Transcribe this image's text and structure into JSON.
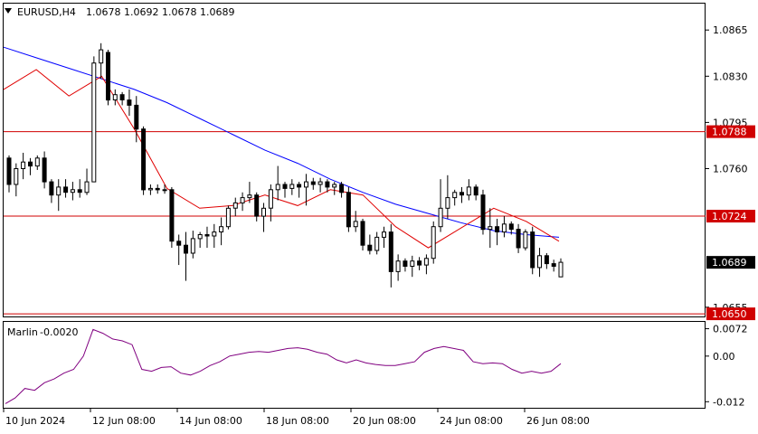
{
  "header": {
    "symbol": "EURUSD,H4",
    "ohlc": "1.0678 1.0692 1.0678 1.0689"
  },
  "colors": {
    "background": "#ffffff",
    "border": "#000000",
    "candle": "#000000",
    "ma_slow": "#0000ff",
    "ma_fast": "#e00000",
    "level_line": "#d00000",
    "indicator": "#800080",
    "price_tag_bg": "#000000",
    "price_tag_text": "#ffffff"
  },
  "chart_data": {
    "type": "line",
    "title": "EURUSD,H4",
    "price_axis": {
      "ticks": [
        "1.0865",
        "1.0830",
        "1.0795",
        "1.0760",
        "1.0655"
      ],
      "range": [
        1.0648,
        1.0885
      ]
    },
    "x_axis": {
      "ticks": [
        "10 Jun 2024",
        "12 Jun 08:00",
        "14 Jun 08:00",
        "18 Jun 08:00",
        "20 Jun 08:00",
        "24 Jun 08:00",
        "26 Jun 08:00"
      ]
    },
    "levels": [
      {
        "label": "1.0788",
        "value": 1.0788
      },
      {
        "label": "1.0724",
        "value": 1.0724
      },
      {
        "label": "1.0650",
        "value": 1.065
      }
    ],
    "current_price": {
      "label": "1.0689",
      "value": 1.0689
    },
    "candles": [
      [
        1.0768,
        1.077,
        1.0742,
        1.0748
      ],
      [
        1.0748,
        1.0764,
        1.0739,
        1.076
      ],
      [
        1.076,
        1.0772,
        1.0752,
        1.0765
      ],
      [
        1.0765,
        1.0768,
        1.0755,
        1.0762
      ],
      [
        1.0762,
        1.077,
        1.0759,
        1.0768
      ],
      [
        1.0768,
        1.0773,
        1.0745,
        1.075
      ],
      [
        1.075,
        1.0752,
        1.0734,
        1.074
      ],
      [
        1.074,
        1.0752,
        1.0728,
        1.0746
      ],
      [
        1.0746,
        1.0752,
        1.0738,
        1.0742
      ],
      [
        1.0742,
        1.075,
        1.0736,
        1.0744
      ],
      [
        1.0744,
        1.0752,
        1.0738,
        1.0742
      ],
      [
        1.0742,
        1.076,
        1.074,
        1.075
      ],
      [
        1.075,
        1.0845,
        1.075,
        1.084
      ],
      [
        1.084,
        1.0855,
        1.0828,
        1.085
      ],
      [
        1.0848,
        1.085,
        1.0808,
        1.0812
      ],
      [
        1.0812,
        1.082,
        1.0808,
        1.0816
      ],
      [
        1.0816,
        1.0818,
        1.0808,
        1.0812
      ],
      [
        1.0812,
        1.082,
        1.08,
        1.0808
      ],
      [
        1.0808,
        1.0815,
        1.078,
        1.079
      ],
      [
        1.079,
        1.0792,
        1.074,
        1.0744
      ],
      [
        1.0744,
        1.0748,
        1.074,
        1.0745
      ],
      [
        1.0745,
        1.0748,
        1.0741,
        1.0744
      ],
      [
        1.0744,
        1.0748,
        1.0741,
        1.0744
      ],
      [
        1.0744,
        1.0746,
        1.07,
        1.0705
      ],
      [
        1.0705,
        1.071,
        1.0687,
        1.0702
      ],
      [
        1.0702,
        1.0712,
        1.0675,
        1.0696
      ],
      [
        1.0696,
        1.0713,
        1.0692,
        1.0707
      ],
      [
        1.0707,
        1.0712,
        1.07,
        1.071
      ],
      [
        1.071,
        1.0716,
        1.07,
        1.0709
      ],
      [
        1.0709,
        1.0718,
        1.07,
        1.0712
      ],
      [
        1.0712,
        1.0723,
        1.0702,
        1.0716
      ],
      [
        1.0716,
        1.0732,
        1.0714,
        1.073
      ],
      [
        1.073,
        1.0738,
        1.0724,
        1.0734
      ],
      [
        1.0734,
        1.0742,
        1.0728,
        1.0738
      ],
      [
        1.0738,
        1.075,
        1.0734,
        1.074
      ],
      [
        1.074,
        1.0742,
        1.072,
        1.0724
      ],
      [
        1.0724,
        1.0734,
        1.0712,
        1.073
      ],
      [
        1.073,
        1.0748,
        1.072,
        1.0744
      ],
      [
        1.0744,
        1.0762,
        1.0736,
        1.0748
      ],
      [
        1.0748,
        1.075,
        1.0738,
        1.0745
      ],
      [
        1.0745,
        1.0752,
        1.074,
        1.0748
      ],
      [
        1.0748,
        1.075,
        1.0738,
        1.0746
      ],
      [
        1.0746,
        1.0756,
        1.0732,
        1.075
      ],
      [
        1.075,
        1.0753,
        1.0744,
        1.0748
      ],
      [
        1.0748,
        1.0753,
        1.0742,
        1.075
      ],
      [
        1.075,
        1.0752,
        1.0742,
        1.0746
      ],
      [
        1.0746,
        1.075,
        1.074,
        1.0748
      ],
      [
        1.0748,
        1.075,
        1.0738,
        1.0742
      ],
      [
        1.0742,
        1.0746,
        1.0712,
        1.0716
      ],
      [
        1.0716,
        1.0728,
        1.0712,
        1.072
      ],
      [
        1.072,
        1.0722,
        1.0698,
        1.0702
      ],
      [
        1.0702,
        1.071,
        1.0695,
        1.0698
      ],
      [
        1.0698,
        1.0712,
        1.0695,
        1.0708
      ],
      [
        1.0708,
        1.0716,
        1.07,
        1.0712
      ],
      [
        1.0712,
        1.0718,
        1.067,
        1.0682
      ],
      [
        1.0682,
        1.0695,
        1.0675,
        1.069
      ],
      [
        1.069,
        1.0692,
        1.0682,
        1.0686
      ],
      [
        1.0686,
        1.0694,
        1.0678,
        1.069
      ],
      [
        1.069,
        1.0693,
        1.0683,
        1.0687
      ],
      [
        1.0687,
        1.0695,
        1.068,
        1.0692
      ],
      [
        1.0692,
        1.072,
        1.0688,
        1.0716
      ],
      [
        1.0716,
        1.0752,
        1.0712,
        1.073
      ],
      [
        1.073,
        1.0755,
        1.0722,
        1.0738
      ],
      [
        1.0738,
        1.0744,
        1.0732,
        1.0742
      ],
      [
        1.0742,
        1.0746,
        1.0734,
        1.074
      ],
      [
        1.074,
        1.0752,
        1.0736,
        1.0746
      ],
      [
        1.0746,
        1.0748,
        1.0736,
        1.074
      ],
      [
        1.074,
        1.0744,
        1.071,
        1.0714
      ],
      [
        1.0714,
        1.073,
        1.07,
        1.0716
      ],
      [
        1.0716,
        1.0722,
        1.0702,
        1.0712
      ],
      [
        1.0712,
        1.0724,
        1.0708,
        1.0718
      ],
      [
        1.0718,
        1.072,
        1.071,
        1.0714
      ],
      [
        1.0714,
        1.0718,
        1.0696,
        1.07
      ],
      [
        1.07,
        1.0714,
        1.0698,
        1.0712
      ],
      [
        1.0712,
        1.0716,
        1.068,
        1.0685
      ],
      [
        1.0685,
        1.07,
        1.0678,
        1.0694
      ],
      [
        1.0694,
        1.0696,
        1.0684,
        1.0688
      ],
      [
        1.0688,
        1.0691,
        1.0682,
        1.0686
      ],
      [
        1.0678,
        1.0692,
        1.0678,
        1.0689
      ]
    ],
    "ma_slow_values": [
      1.0852,
      1.0844,
      1.0836,
      1.0828,
      1.082,
      1.081,
      1.0798,
      1.0786,
      1.0774,
      1.0764,
      1.0752,
      1.0742,
      1.0733,
      1.0726,
      1.0719,
      1.0713,
      1.071,
      1.0708
    ],
    "ma_fast_values": [
      1.082,
      1.0835,
      1.0815,
      1.083,
      1.079,
      1.0745,
      1.073,
      1.0732,
      1.074,
      1.0732,
      1.0744,
      1.074,
      1.0716,
      1.07,
      1.0715,
      1.073,
      1.072,
      1.0705
    ],
    "indicator": {
      "name": "Marlin",
      "value_label": "-0.0020",
      "ticks": [
        "0.0072",
        "0.00",
        "-0.012"
      ],
      "range": [
        -0.0136,
        0.009
      ],
      "values": [
        -0.0125,
        -0.011,
        -0.0085,
        -0.009,
        -0.007,
        -0.006,
        -0.0045,
        -0.0035,
        0.0,
        0.007,
        0.006,
        0.0045,
        0.004,
        0.003,
        -0.0035,
        -0.004,
        -0.003,
        -0.0028,
        -0.0045,
        -0.005,
        -0.004,
        -0.0025,
        -0.0015,
        0.0,
        0.0005,
        0.001,
        0.0012,
        0.001,
        0.0015,
        0.002,
        0.0022,
        0.0018,
        0.001,
        0.0005,
        -0.001,
        -0.0018,
        -0.001,
        -0.0018,
        -0.0022,
        -0.0025,
        -0.0025,
        -0.002,
        -0.0015,
        0.001,
        0.002,
        0.0025,
        0.002,
        0.0015,
        -0.0015,
        -0.002,
        -0.0018,
        -0.002,
        -0.0035,
        -0.0045,
        -0.004,
        -0.0045,
        -0.004,
        -0.002
      ]
    }
  }
}
